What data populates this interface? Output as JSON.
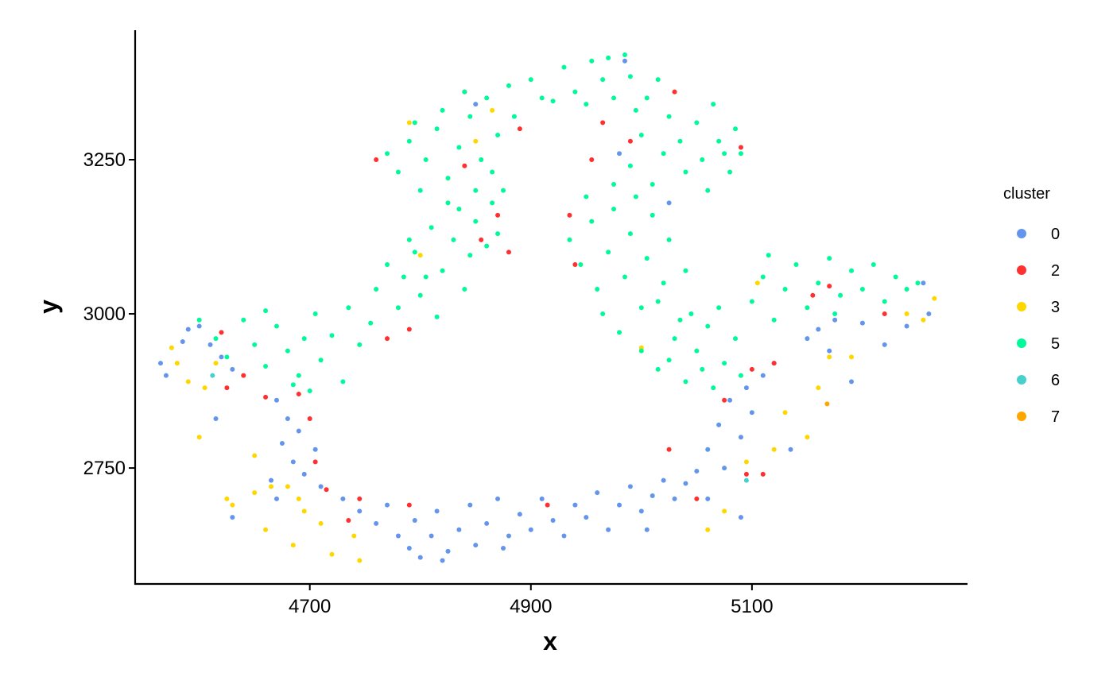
{
  "chart_data": {
    "type": "scatter",
    "x_label": "x",
    "y_label": "y",
    "legend_title": "cluster",
    "xlim": [
      4542,
      5295
    ],
    "ylim": [
      2562,
      3460
    ],
    "xticks": [
      4700,
      4900,
      5100
    ],
    "yticks": [
      2750,
      3000,
      3250
    ],
    "grid": false,
    "legend": "right",
    "series": [
      {
        "name": "0",
        "color": "#6495ED",
        "x": [
          4730,
          4745,
          4760,
          4770,
          4780,
          4790,
          4795,
          4800,
          4810,
          4815,
          4825,
          4835,
          4845,
          4850,
          4860,
          4870,
          4880,
          4890,
          4900,
          4910,
          4920,
          4930,
          4940,
          4950,
          4960,
          4970,
          4980,
          4990,
          5000,
          5010,
          5020,
          5030,
          5040,
          5050,
          5005,
          4875,
          4820,
          4565,
          4570,
          4585,
          4590,
          4600,
          4610,
          4620,
          4630,
          4670,
          4675,
          4680,
          4685,
          4690,
          4695,
          4705,
          4710,
          4665,
          4670,
          4615,
          4630,
          5060,
          5070,
          5075,
          5080,
          5090,
          5095,
          5100,
          5110,
          5120,
          5135,
          5060,
          5090,
          5150,
          5160,
          5175,
          5200,
          5220,
          5240,
          5260,
          5255,
          5190,
          5170,
          4850,
          4985,
          4980,
          5025
        ],
        "y": [
          2700,
          2680,
          2660,
          2690,
          2640,
          2620,
          2665,
          2605,
          2640,
          2680,
          2615,
          2650,
          2690,
          2625,
          2660,
          2700,
          2640,
          2675,
          2650,
          2700,
          2665,
          2640,
          2690,
          2670,
          2710,
          2650,
          2690,
          2720,
          2680,
          2705,
          2730,
          2700,
          2725,
          2745,
          2650,
          2620,
          2600,
          2920,
          2900,
          2955,
          2975,
          2980,
          2950,
          2930,
          2910,
          2860,
          2790,
          2830,
          2760,
          2810,
          2740,
          2780,
          2720,
          2730,
          2700,
          2830,
          2670,
          2780,
          2820,
          2750,
          2860,
          2800,
          2880,
          2840,
          2900,
          2920,
          2780,
          2700,
          2670,
          2960,
          2975,
          2990,
          2985,
          2950,
          2980,
          3000,
          3050,
          2890,
          2940,
          3340,
          3410,
          3260,
          3180
        ]
      },
      {
        "name": "2",
        "color": "#FF3030",
        "x": [
          4620,
          4625,
          4640,
          4660,
          4690,
          4700,
          4705,
          4715,
          4745,
          4790,
          4735,
          4915,
          5025,
          5050,
          5075,
          5095,
          5110,
          5155,
          5170,
          5220,
          5100,
          5120,
          4770,
          4790,
          4855,
          4870,
          4880,
          4935,
          4940,
          4955,
          4965,
          4990,
          5030,
          5090,
          4890,
          4840,
          4760,
          4840
        ],
        "y": [
          2970,
          2880,
          2900,
          2865,
          2870,
          2830,
          2760,
          2715,
          2700,
          2690,
          2665,
          2690,
          2780,
          2700,
          2860,
          2740,
          2740,
          3030,
          3045,
          3000,
          2910,
          2920,
          2960,
          2975,
          3120,
          3160,
          3100,
          3160,
          3080,
          3250,
          3310,
          3280,
          3360,
          3270,
          3300,
          3360,
          3250,
          3240
        ]
      },
      {
        "name": "3",
        "color": "#FFD700",
        "x": [
          4575,
          4580,
          4590,
          4605,
          4615,
          4600,
          4625,
          4630,
          4650,
          4650,
          4665,
          4680,
          4690,
          4695,
          4685,
          4710,
          4720,
          4745,
          4740,
          4660,
          4800,
          4790,
          4850,
          4865,
          5000,
          5075,
          5095,
          5120,
          5130,
          5150,
          5160,
          5170,
          5190,
          5240,
          5255,
          5265,
          5105,
          5060
        ],
        "y": [
          2945,
          2920,
          2890,
          2880,
          2920,
          2800,
          2700,
          2690,
          2710,
          2770,
          2720,
          2720,
          2700,
          2680,
          2625,
          2660,
          2610,
          2600,
          2640,
          2650,
          3095,
          3310,
          3280,
          3330,
          2945,
          2680,
          2760,
          2780,
          2840,
          2800,
          2880,
          2930,
          2930,
          3000,
          2990,
          3025,
          3050,
          2650
        ]
      },
      {
        "name": "5",
        "color": "#00FA9A",
        "x": [
          4600,
          4615,
          4625,
          4640,
          4650,
          4660,
          4670,
          4680,
          4690,
          4695,
          4705,
          4710,
          4720,
          4730,
          4735,
          4745,
          4755,
          4660,
          4685,
          4700,
          4760,
          4770,
          4780,
          4785,
          4795,
          4800,
          4810,
          4815,
          4820,
          4830,
          4835,
          4840,
          4845,
          4850,
          4860,
          4865,
          4870,
          4825,
          4805,
          4790,
          4770,
          4780,
          4790,
          4800,
          4805,
          4815,
          4825,
          4835,
          4845,
          4850,
          4855,
          4860,
          4870,
          4865,
          4880,
          4885,
          4875,
          4820,
          4840,
          4795,
          4900,
          4910,
          4930,
          4940,
          4955,
          4965,
          4975,
          4985,
          4990,
          4920,
          4950,
          4970,
          4990,
          5000,
          5005,
          5010,
          5020,
          5025,
          5035,
          5040,
          5050,
          5055,
          5065,
          5070,
          5080,
          5085,
          5090,
          4975,
          4995,
          5015,
          5060,
          5075,
          4935,
          4945,
          4955,
          4960,
          4970,
          4975,
          4985,
          4990,
          5000,
          5005,
          5010,
          5020,
          5025,
          5035,
          5040,
          4950,
          4965,
          4980,
          4995,
          5015,
          5000,
          5015,
          5030,
          5040,
          5050,
          5060,
          5065,
          5075,
          5085,
          5090,
          5045,
          5025,
          5070,
          5055,
          5100,
          5110,
          5120,
          5130,
          5140,
          5150,
          5160,
          5170,
          5180,
          5190,
          5200,
          5210,
          5220,
          5230,
          5240,
          5250,
          5115,
          5175
        ],
        "y": [
          2990,
          2960,
          2930,
          2990,
          2950,
          2915,
          2980,
          2940,
          2900,
          2960,
          3000,
          2925,
          2965,
          2890,
          3010,
          2950,
          2985,
          3005,
          2885,
          2875,
          3040,
          3080,
          3010,
          3060,
          3100,
          3030,
          3140,
          2995,
          3070,
          3120,
          3170,
          3040,
          3095,
          3150,
          3110,
          3180,
          3130,
          3180,
          3060,
          3120,
          3260,
          3230,
          3280,
          3200,
          3250,
          3300,
          3220,
          3270,
          3320,
          3200,
          3250,
          3350,
          3290,
          3230,
          3370,
          3320,
          3200,
          3330,
          3360,
          3310,
          3380,
          3350,
          3400,
          3360,
          3410,
          3380,
          3350,
          3420,
          3385,
          3345,
          3340,
          3415,
          3240,
          3290,
          3350,
          3210,
          3260,
          3320,
          3280,
          3230,
          3310,
          3250,
          3340,
          3280,
          3230,
          3300,
          3260,
          3210,
          3330,
          3380,
          3200,
          3260,
          3120,
          3080,
          3150,
          3040,
          3100,
          3170,
          3060,
          3130,
          3010,
          3090,
          3160,
          3050,
          3120,
          2990,
          3070,
          3190,
          3000,
          2970,
          3190,
          3020,
          2940,
          2910,
          2960,
          2890,
          2940,
          2980,
          2880,
          2920,
          2960,
          2900,
          3000,
          2925,
          3010,
          2910,
          3020,
          3060,
          2990,
          3040,
          3080,
          3010,
          3050,
          3090,
          3030,
          3070,
          3040,
          3080,
          3020,
          3060,
          3040,
          3050,
          3095,
          3000
        ]
      },
      {
        "name": "6",
        "color": "#48D1CC",
        "x": [
          4612,
          5095
        ],
        "y": [
          2900,
          2730
        ]
      },
      {
        "name": "7",
        "color": "#FFA500",
        "x": [
          5168
        ],
        "y": [
          2854
        ]
      }
    ]
  }
}
